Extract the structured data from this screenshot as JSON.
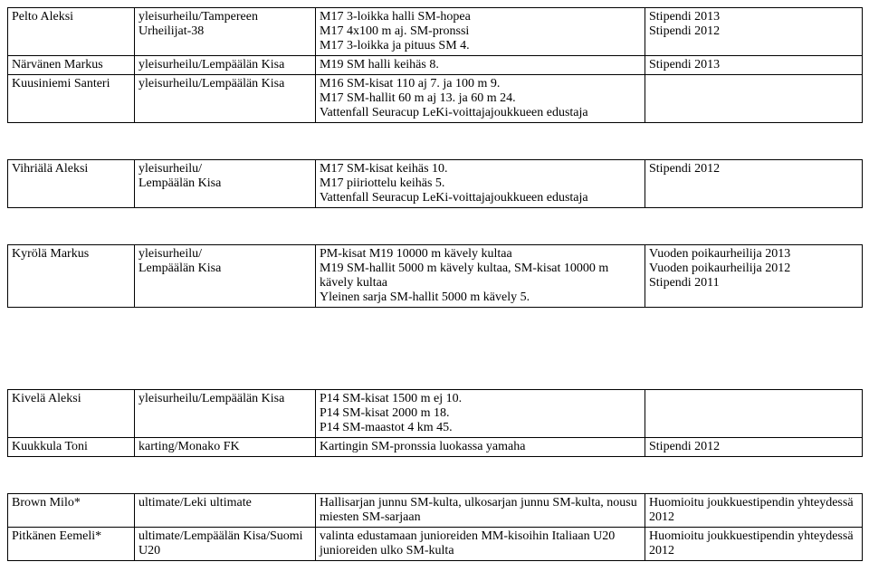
{
  "table1": {
    "rows": [
      {
        "a": "Pelto Aleksi",
        "b": "yleisurheilu/Tampereen Urheilijat-38",
        "c": "M17 3-loikka halli SM-hopea\nM17 4x100 m aj. SM-pronssi\nM17 3-loikka ja pituus SM 4.",
        "d": "Stipendi 2013\nStipendi 2012"
      },
      {
        "a": "Närvänen  Markus",
        "b": "yleisurheilu/Lempäälän Kisa",
        "c": "M19 SM halli keihäs 8.",
        "d": "Stipendi 2013"
      },
      {
        "a": "Kuusiniemi Santeri",
        "b": "yleisurheilu/Lempäälän Kisa",
        "c": "M16 SM-kisat 110 aj 7. ja 100 m 9.\nM17 SM-hallit 60 m aj 13. ja 60 m 24.\nVattenfall Seuracup LeKi-voittajajoukkueen edustaja",
        "d": ""
      }
    ]
  },
  "table2": {
    "rows": [
      {
        "a": "Vihriälä Aleksi",
        "b": "yleisurheilu/\nLempäälän Kisa",
        "c": "M17 SM-kisat keihäs 10.\nM17 piiriottelu keihäs 5.\nVattenfall Seuracup LeKi-voittajajoukkueen edustaja",
        "d": "Stipendi 2012"
      }
    ]
  },
  "table3": {
    "rows": [
      {
        "a": "Kyrölä Markus",
        "b": "yleisurheilu/\nLempäälän Kisa",
        "c": "PM-kisat M19 10000 m kävely kultaa\nM19 SM-hallit 5000 m kävely kultaa, SM-kisat 10000 m kävely kultaa\nYleinen sarja SM-hallit 5000 m kävely 5.",
        "d": "Vuoden poikaurheilija 2013\nVuoden poikaurheilija 2012\nStipendi 2011"
      }
    ]
  },
  "table4": {
    "rows": [
      {
        "a": "Kivelä Aleksi",
        "b": "yleisurheilu/Lempäälän Kisa",
        "c": "P14 SM-kisat 1500 m ej 10.\nP14 SM-kisat 2000 m 18.\nP14 SM-maastot 4 km 45.",
        "d": ""
      },
      {
        "a": "Kuukkula Toni",
        "b": "karting/Monako FK",
        "c": "Kartingin SM-pronssia luokassa yamaha",
        "d": "Stipendi 2012"
      }
    ]
  },
  "table5": {
    "rows": [
      {
        "a": "Brown Milo*",
        "b": "ultimate/Leki ultimate",
        "c": "Hallisarjan junnu SM-kulta, ulkosarjan junnu SM-kulta, nousu miesten SM-sarjaan",
        "d": "Huomioitu joukkuestipendin yhteydessä 2012"
      },
      {
        "a": "Pitkänen Eemeli*",
        "b": "ultimate/Lempäälän Kisa/Suomi U20",
        "c": "valinta edustamaan junioreiden MM-kisoihin Italiaan U20\njunioreiden ulko SM-kulta",
        "d": "Huomioitu joukkuestipendin yhteydessä 2012"
      }
    ]
  }
}
